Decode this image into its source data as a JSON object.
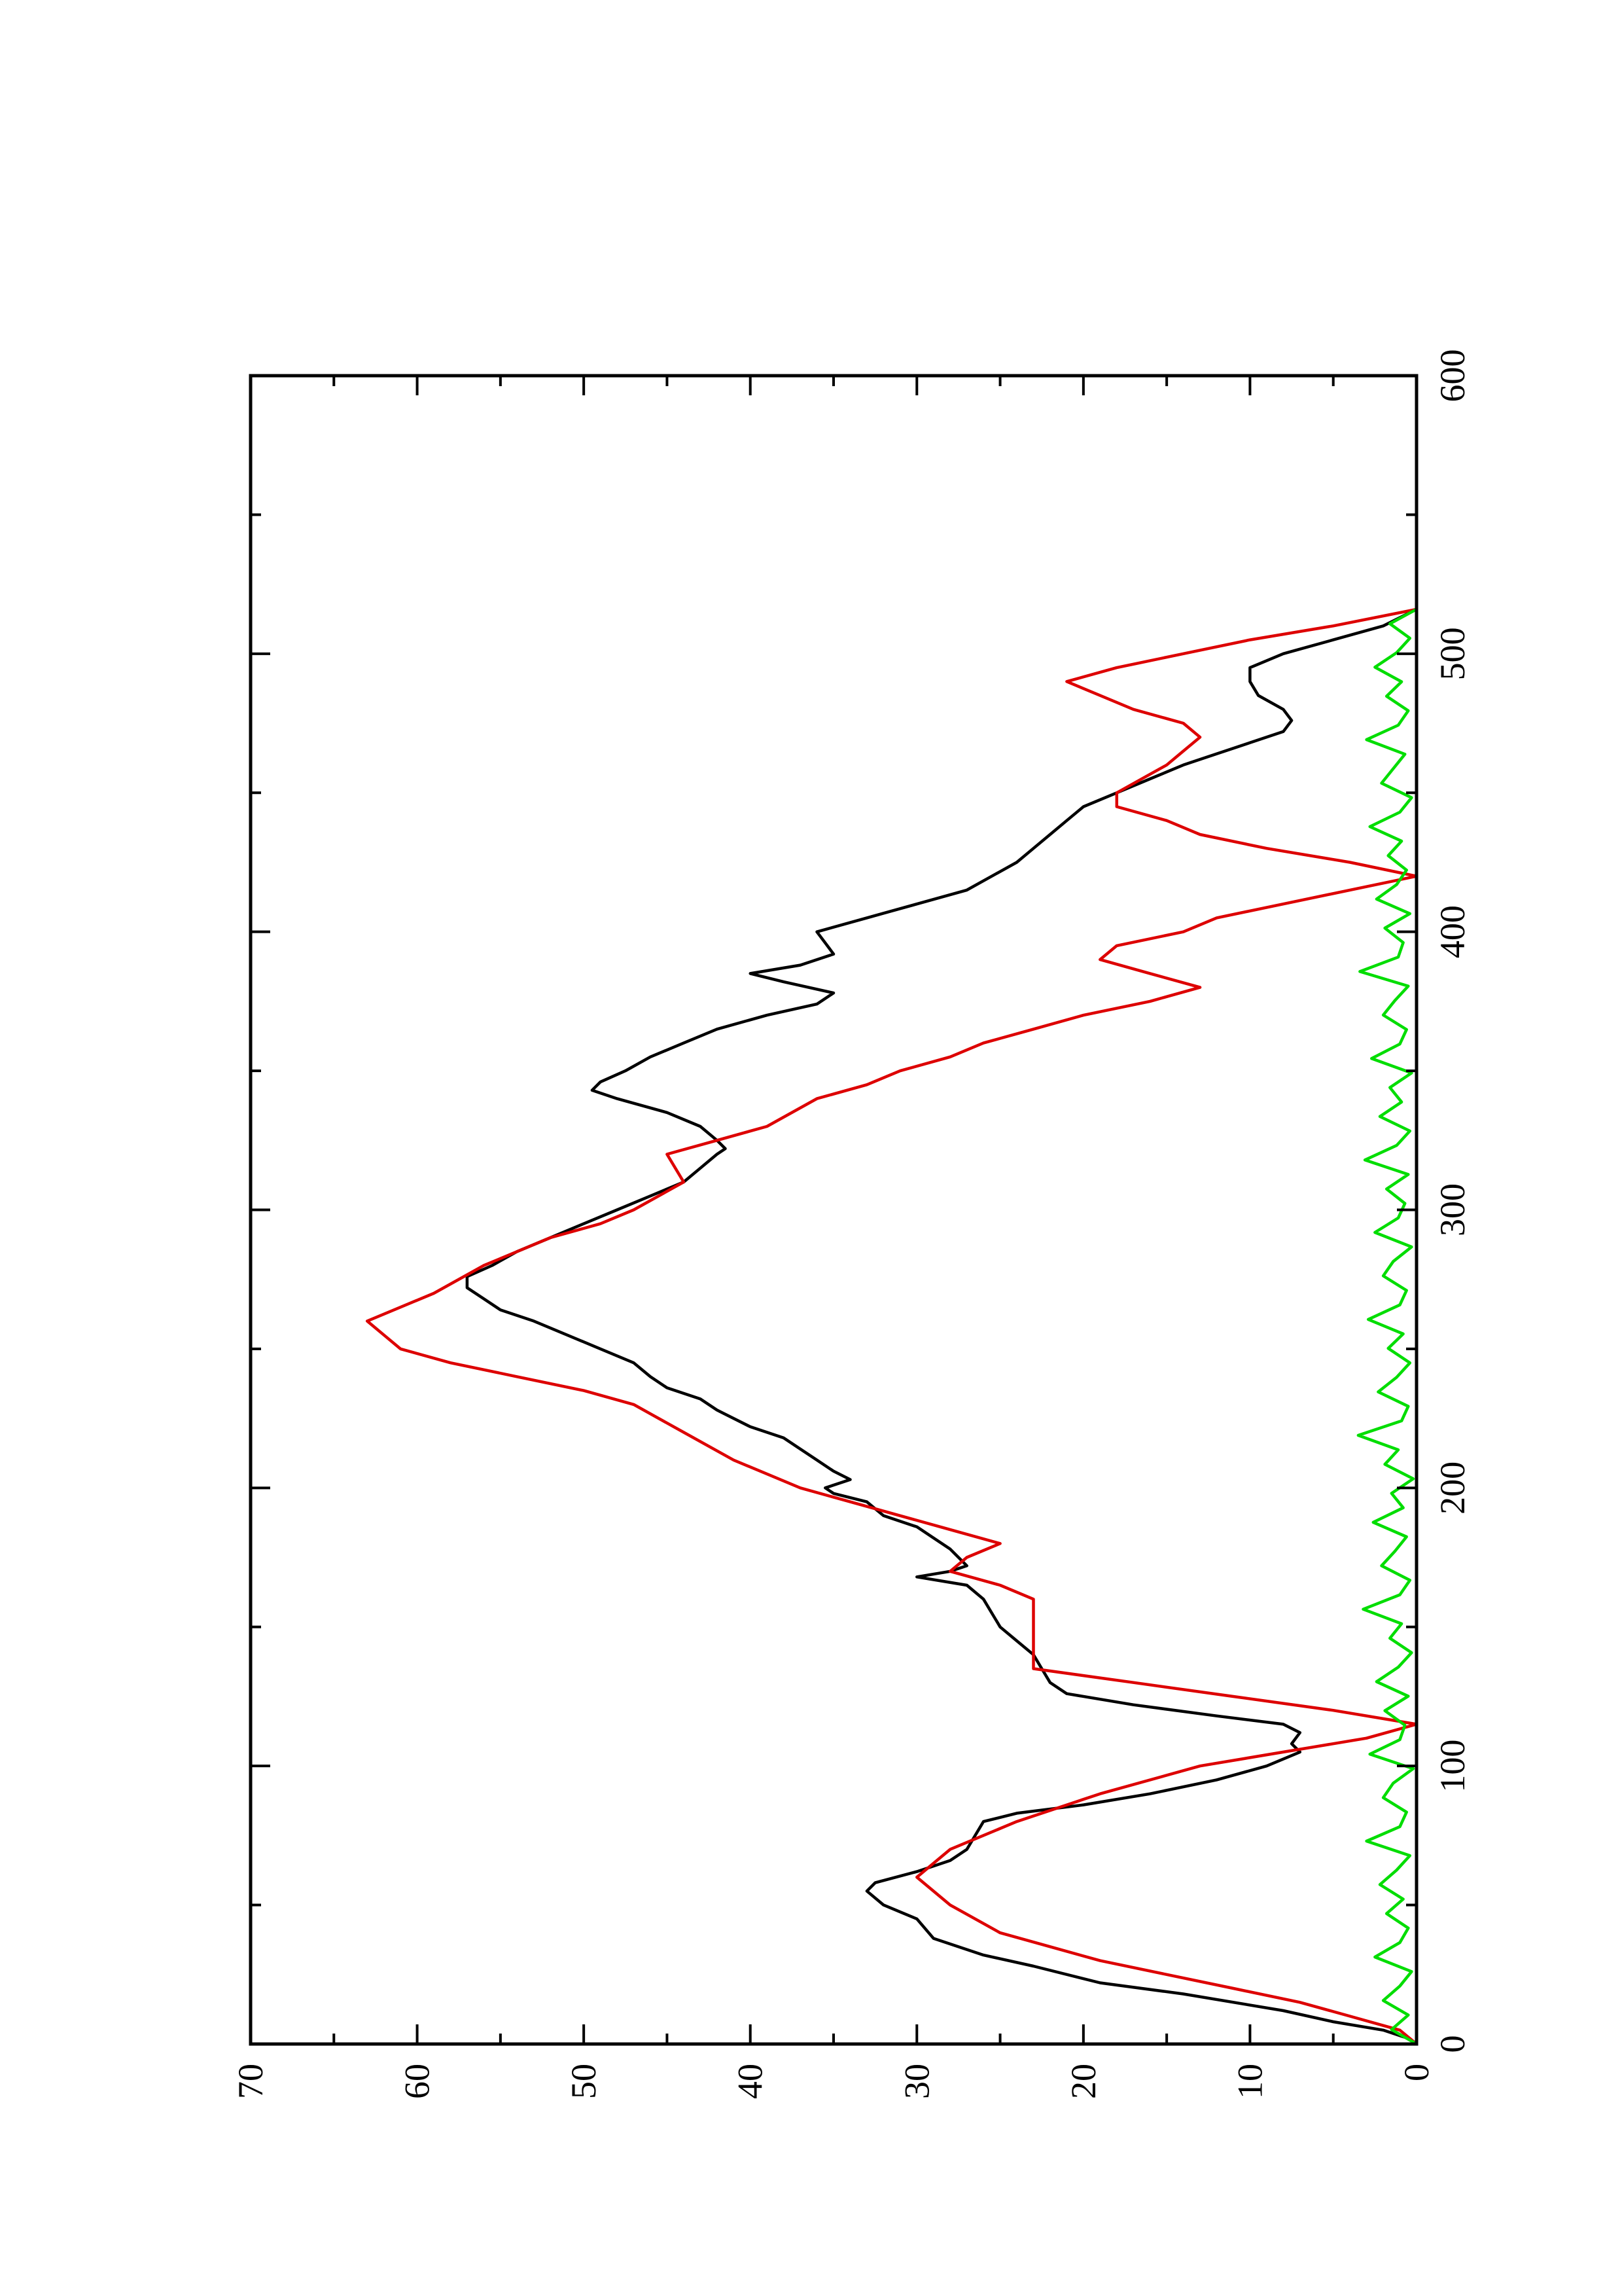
{
  "chart_data": {
    "type": "line",
    "title": "",
    "xlabel": "",
    "ylabel": "",
    "orientation": "rotated-90-ccw",
    "xlim": [
      0,
      600
    ],
    "ylim": [
      0,
      70
    ],
    "x_ticks": [
      0,
      100,
      200,
      300,
      400,
      500,
      600
    ],
    "x_tick_labels": [
      "0",
      "100",
      "200",
      "300",
      "400",
      "500",
      "600"
    ],
    "y_ticks": [
      0,
      10,
      20,
      30,
      40,
      50,
      60,
      70
    ],
    "y_tick_labels": [
      "0",
      "10",
      "20",
      "30",
      "40",
      "50",
      "60",
      "70"
    ],
    "grid": false,
    "legend": "none",
    "series": [
      {
        "color": "#000000",
        "line": "smooth",
        "x": [
          0,
          2,
          5,
          8,
          12,
          18,
          22,
          28,
          32,
          38,
          45,
          50,
          55,
          58,
          62,
          66,
          70,
          75,
          80,
          83,
          86,
          90,
          95,
          100,
          105,
          108,
          112,
          115,
          118,
          122,
          126,
          130,
          135,
          140,
          145,
          150,
          155,
          160,
          165,
          168,
          170,
          172,
          175,
          178,
          182,
          186,
          190,
          195,
          198,
          200,
          203,
          206,
          210,
          214,
          218,
          222,
          228,
          232,
          236,
          240,
          245,
          250,
          255,
          260,
          264,
          268,
          272,
          276,
          280,
          285,
          290,
          295,
          300,
          305,
          310,
          315,
          320,
          322,
          325,
          330,
          335,
          340,
          343,
          346,
          350,
          355,
          360,
          365,
          370,
          374,
          378,
          382,
          385,
          388,
          392,
          396,
          400,
          405,
          410,
          415,
          420,
          425,
          430,
          435,
          440,
          445,
          450,
          455,
          460,
          464,
          468,
          472,
          476,
          480,
          485,
          490,
          495,
          500,
          505,
          510,
          516
        ],
        "y": [
          0,
          0.5,
          2,
          5,
          8,
          14,
          19,
          23,
          26,
          29,
          30,
          32,
          33,
          32.5,
          30,
          28,
          27,
          26.5,
          26,
          24,
          20,
          16,
          12,
          9,
          7,
          7.5,
          7,
          8,
          12,
          17,
          21,
          22,
          22.5,
          23,
          24,
          25,
          25.5,
          26,
          27,
          30,
          28,
          27,
          27.5,
          28,
          29,
          30,
          32,
          33,
          35,
          35.5,
          34,
          35,
          36,
          37,
          38,
          40,
          42,
          43,
          45,
          46,
          47,
          49,
          51,
          53,
          55,
          56,
          57,
          57,
          55.5,
          54,
          52,
          50,
          48,
          46,
          44,
          43,
          42,
          41.5,
          42,
          43,
          45,
          48,
          49.5,
          49,
          47.5,
          46,
          44,
          42,
          39,
          36,
          35,
          38,
          40,
          37,
          35,
          35.5,
          36,
          33,
          30,
          27,
          25.5,
          24,
          23,
          22,
          21,
          20,
          18,
          16,
          14,
          12,
          10,
          8,
          7.5,
          8,
          9.5,
          10,
          10,
          8,
          5,
          2,
          0
        ]
      },
      {
        "color": "#dd0000",
        "line": "stepped",
        "x": [
          0,
          5,
          10,
          15,
          20,
          25,
          30,
          35,
          40,
          50,
          60,
          70,
          80,
          90,
          100,
          105,
          110,
          115,
          120,
          125,
          130,
          135,
          145,
          155,
          160,
          165,
          170,
          175,
          180,
          185,
          190,
          195,
          200,
          210,
          220,
          230,
          235,
          240,
          245,
          250,
          255,
          260,
          265,
          270,
          280,
          290,
          295,
          300,
          310,
          320,
          325,
          330,
          340,
          345,
          350,
          355,
          360,
          365,
          370,
          375,
          380,
          385,
          390,
          395,
          400,
          405,
          410,
          415,
          420,
          425,
          430,
          435,
          440,
          445,
          450,
          460,
          465,
          470,
          475,
          480,
          485,
          490,
          495,
          500,
          505,
          510,
          516
        ],
        "y": [
          0,
          1,
          4,
          7,
          11,
          15,
          19,
          22,
          25,
          28,
          30,
          28,
          24,
          19,
          13,
          8,
          3,
          0,
          5,
          11,
          17,
          23,
          23,
          23,
          23,
          25,
          28,
          27,
          25,
          28,
          31,
          34,
          37,
          41,
          44,
          47,
          50,
          54,
          58,
          61,
          62,
          63,
          61,
          59,
          56,
          52,
          49,
          47,
          44,
          45,
          42,
          39,
          36,
          33,
          31,
          28,
          26,
          23,
          20,
          16,
          13,
          16,
          19,
          18,
          14,
          12,
          8,
          4,
          0,
          4,
          9,
          13,
          15,
          18,
          18,
          15,
          14,
          13,
          14,
          17,
          19,
          21,
          18,
          14,
          10,
          5,
          0
        ]
      },
      {
        "color": "#00dd00",
        "line": "noisy",
        "x_range": [
          0,
          516
        ],
        "approx_level": 1,
        "approx_max": 4,
        "y_samples": [
          0,
          1.5,
          0.5,
          2,
          1,
          0.3,
          2.5,
          1,
          0.5,
          1.8,
          0.8,
          2.2,
          1.2,
          0.4,
          3,
          1,
          0.6,
          2,
          1.4,
          0.2,
          2.8,
          1,
          0.7,
          1.9,
          0.5,
          2.4,
          1.1,
          0.3,
          1.6,
          0.9,
          3.2,
          1,
          0.4,
          2.1,
          1.3,
          0.6,
          2.6,
          0.8,
          1.5,
          0.2,
          1.9,
          1.1,
          3.5,
          0.9,
          0.5,
          2.3,
          1.2,
          0.4,
          1.7,
          0.8,
          2.9,
          1,
          0.6,
          2,
          1.4,
          0.3,
          2.5,
          1.1,
          0.7,
          1.8,
          0.5,
          3.1,
          1.2,
          0.4,
          2.2,
          0.9,
          1.6,
          0.3,
          2.7,
          1,
          0.6,
          2,
          1.3,
          0.5,
          3.4,
          1.1,
          0.8,
          1.9,
          0.4,
          2.4,
          1.2,
          0.6,
          1.7,
          0.9,
          2.8,
          1,
          0.3,
          2.1,
          1.4,
          0.7,
          3,
          1.1,
          0.5,
          1.8,
          0.9,
          2.5,
          1.2,
          0.4,
          1.6,
          0
        ]
      }
    ]
  }
}
